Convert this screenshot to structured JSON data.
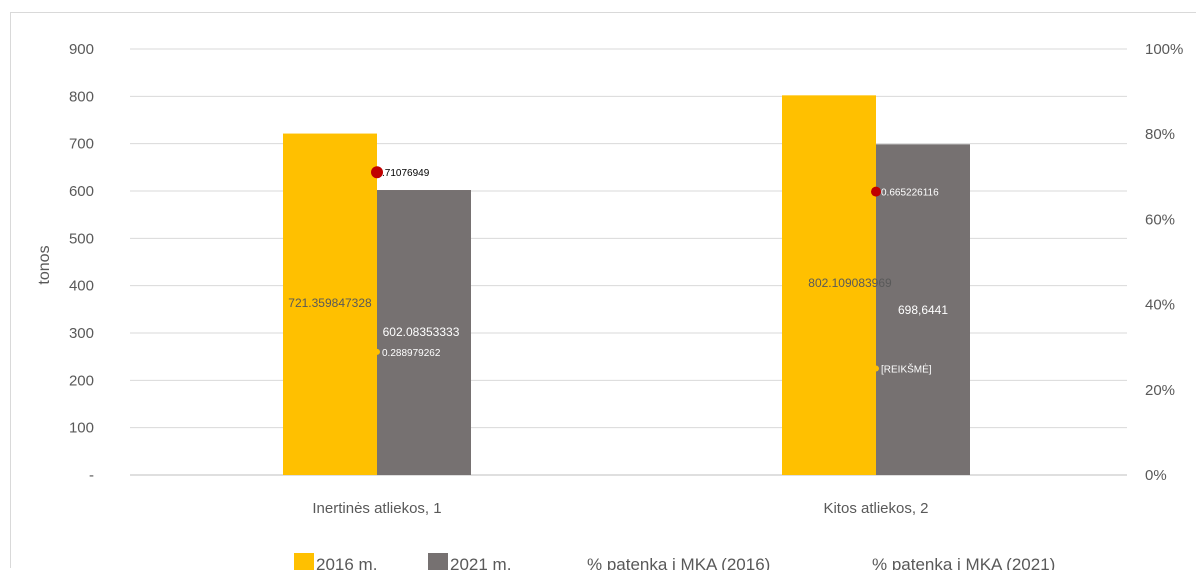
{
  "chart_data": {
    "type": "bar",
    "ylabel": "tonos",
    "ylim": [
      0,
      900
    ],
    "yticks": [
      "-",
      "100",
      "200",
      "300",
      "400",
      "500",
      "600",
      "700",
      "800",
      "900"
    ],
    "y2lim": [
      0,
      1
    ],
    "y2ticks": [
      "0%",
      "20%",
      "40%",
      "60%",
      "80%",
      "100%"
    ],
    "grid": true,
    "legend_position": "bottom",
    "categories": [
      "Inertinės atliekos, 1",
      "Kitos atliekos, 2"
    ],
    "series": [
      {
        "name": "2016 m.",
        "kind": "bar",
        "color": "#ffc000",
        "values": [
          721.359847328,
          802.109083969
        ],
        "labels": [
          "721.359847328",
          "802.109083969"
        ]
      },
      {
        "name": "2021 m.",
        "kind": "bar",
        "color": "#767171",
        "values": [
          602.083533333,
          698.6441
        ],
        "labels": [
          "602.08353333",
          "698,6441"
        ]
      },
      {
        "name": "% patenka į MKA (2016)",
        "kind": "marker",
        "axis": "secondary",
        "color": "#ffc000",
        "values": [
          0.288979262,
          0.25
        ],
        "labels": [
          "0.288979262",
          "[REIKŠMĖ]"
        ]
      },
      {
        "name": "% patenka į MKA (2021)",
        "kind": "marker",
        "axis": "secondary",
        "color": "#c00000",
        "values": [
          0.71076949,
          0.665226116
        ],
        "labels": [
          ".71076949",
          "0.665226116"
        ]
      }
    ]
  }
}
